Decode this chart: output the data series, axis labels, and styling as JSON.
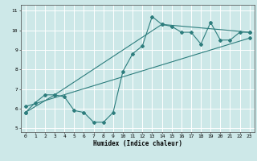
{
  "title": "",
  "xlabel": "Humidex (Indice chaleur)",
  "ylabel": "",
  "xlim": [
    -0.5,
    23.5
  ],
  "ylim": [
    4.8,
    11.3
  ],
  "xticks": [
    0,
    1,
    2,
    3,
    4,
    5,
    6,
    7,
    8,
    9,
    10,
    11,
    12,
    13,
    14,
    15,
    16,
    17,
    18,
    19,
    20,
    21,
    22,
    23
  ],
  "yticks": [
    5,
    6,
    7,
    8,
    9,
    10,
    11
  ],
  "background_color": "#cde8e8",
  "grid_color": "#ffffff",
  "line_color": "#2d7d7d",
  "line1_x": [
    0,
    1,
    2,
    3,
    4,
    5,
    6,
    7,
    8,
    9,
    10,
    11,
    12,
    13,
    14,
    15,
    16,
    17,
    18,
    19,
    20,
    21,
    22,
    23
  ],
  "line1_y": [
    5.8,
    6.3,
    6.7,
    6.7,
    6.6,
    5.9,
    5.8,
    5.3,
    5.3,
    5.8,
    7.9,
    8.8,
    9.2,
    10.7,
    10.3,
    10.2,
    9.9,
    9.9,
    9.3,
    10.4,
    9.5,
    9.5,
    9.9,
    9.9
  ],
  "line2_x": [
    0,
    3,
    14,
    23
  ],
  "line2_y": [
    5.8,
    6.7,
    10.3,
    9.9
  ],
  "line3_x": [
    0,
    23
  ],
  "line3_y": [
    6.1,
    9.6
  ],
  "tick_fontsize": 4.5,
  "xlabel_fontsize": 5.5,
  "marker_size": 2.0,
  "linewidth": 0.8
}
